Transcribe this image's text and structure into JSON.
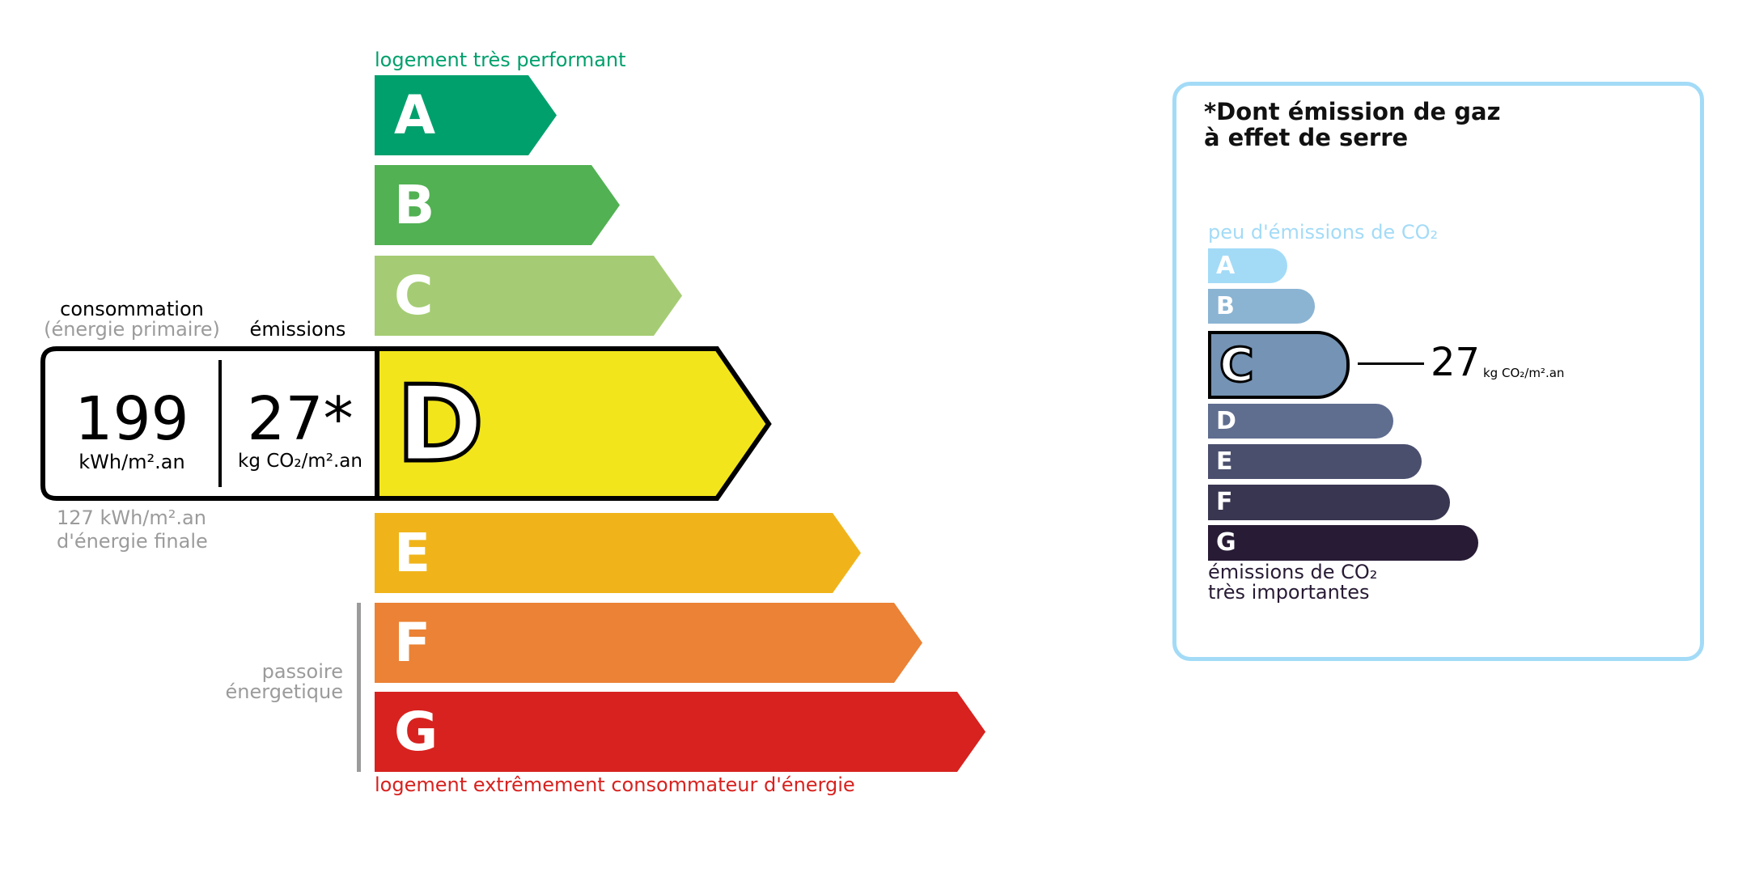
{
  "energy": {
    "top_label": "logement très performant",
    "bottom_label": "logement extrêmement consommateur d'énergie",
    "passoire_label": [
      "passoire",
      "énergetique"
    ],
    "classes": [
      {
        "letter": "A",
        "color": "#00a06d"
      },
      {
        "letter": "B",
        "color": "#52b153"
      },
      {
        "letter": "C",
        "color": "#a5cc74"
      },
      {
        "letter": "D",
        "color": "#f2e51c"
      },
      {
        "letter": "E",
        "color": "#f0b41a"
      },
      {
        "letter": "F",
        "color": "#eb8235"
      },
      {
        "letter": "G",
        "color": "#d7221f"
      }
    ],
    "current_class": "D",
    "consumption_label": "consommation",
    "consumption_sub": "(énergie primaire)",
    "emissions_label": "émissions",
    "consumption_value": "199",
    "consumption_unit": "kWh/m².an",
    "emissions_value": "27*",
    "emissions_unit": "kg CO₂/m².an",
    "final_energy": "127 kWh/m².an",
    "final_energy_label": "d'énergie finale"
  },
  "ges": {
    "title_line1": "*Dont émission de gaz",
    "title_line2": "à effet de serre",
    "top_label": "peu d'émissions de CO₂",
    "bottom_label_line1": "émissions de CO₂",
    "bottom_label_line2": "très importantes",
    "classes": [
      {
        "letter": "A",
        "color": "#a3dbf7"
      },
      {
        "letter": "B",
        "color": "#8bb4d3"
      },
      {
        "letter": "C",
        "color": "#7593b4"
      },
      {
        "letter": "D",
        "color": "#5f6d8f"
      },
      {
        "letter": "E",
        "color": "#4b4f6e"
      },
      {
        "letter": "F",
        "color": "#393651"
      },
      {
        "letter": "G",
        "color": "#281b35"
      }
    ],
    "current_class": "C",
    "value": "27",
    "unit": "kg CO₂/m².an",
    "border_color": "#a3dbf7"
  }
}
